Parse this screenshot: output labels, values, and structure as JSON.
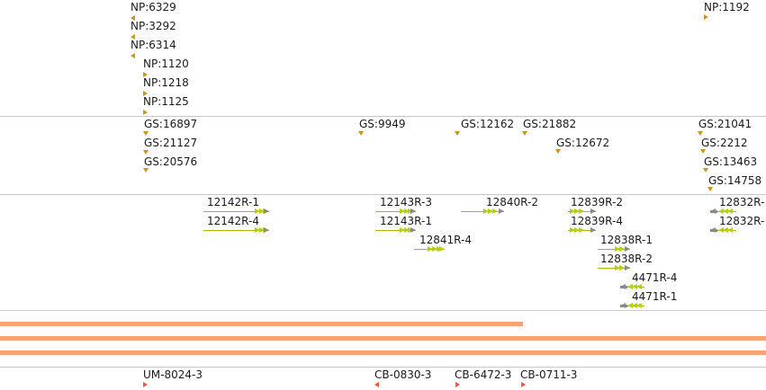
{
  "np_track": {
    "features": [
      {
        "label": "NP:6329",
        "dir": "left"
      },
      {
        "label": "NP:3292",
        "dir": "left"
      },
      {
        "label": "NP:6314",
        "dir": "left"
      },
      {
        "label": "NP:1120",
        "dir": "right"
      },
      {
        "label": "NP:1218",
        "dir": "right"
      },
      {
        "label": "NP:1125",
        "dir": "right"
      },
      {
        "label": "NP:1192",
        "dir": "right"
      }
    ]
  },
  "gs_track": {
    "features": [
      {
        "label": "GS:16897",
        "dir": "down"
      },
      {
        "label": "GS:21127",
        "dir": "down"
      },
      {
        "label": "GS:20576",
        "dir": "down"
      },
      {
        "label": "GS:9949",
        "dir": "down"
      },
      {
        "label": "GS:12162",
        "dir": "down"
      },
      {
        "label": "GS:21882",
        "dir": "down"
      },
      {
        "label": "GS:12672",
        "dir": "down"
      },
      {
        "label": "GS:21041",
        "dir": "down"
      },
      {
        "label": "GS:2212",
        "dir": "down"
      },
      {
        "label": "GS:13463",
        "dir": "down"
      },
      {
        "label": "GS:14758",
        "dir": "down"
      }
    ]
  },
  "gene_track": {
    "genes": [
      {
        "label": "12142R-1",
        "strand": "+"
      },
      {
        "label": "12142R-4",
        "strand": "+"
      },
      {
        "label": "12143R-3",
        "strand": "+"
      },
      {
        "label": "12143R-1",
        "strand": "+"
      },
      {
        "label": "12841R-4",
        "strand": "+"
      },
      {
        "label": "12840R-2",
        "strand": "+"
      },
      {
        "label": "12839R-2",
        "strand": "+"
      },
      {
        "label": "12839R-4",
        "strand": "+"
      },
      {
        "label": "12838R-1",
        "strand": "+"
      },
      {
        "label": "12838R-2",
        "strand": "+"
      },
      {
        "label": "4471R-4",
        "strand": "-"
      },
      {
        "label": "4471R-1",
        "strand": "-"
      },
      {
        "label": "12832R-",
        "strand": "-"
      },
      {
        "label": "12832R-",
        "strand": "-"
      }
    ],
    "colors": {
      "line": "#a8b800",
      "exon": "#b9cc10",
      "grey": "#8a8a8a"
    }
  },
  "coverage_track": {
    "color": "#f4a37a"
  },
  "marker_track": {
    "features": [
      {
        "label": "UM-8024-3",
        "dir": "right"
      },
      {
        "label": "CB-0830-3",
        "dir": "left"
      },
      {
        "label": "CB-6472-3",
        "dir": "right"
      },
      {
        "label": "CB-0711-3",
        "dir": "right"
      }
    ],
    "color": "#e8583a"
  }
}
